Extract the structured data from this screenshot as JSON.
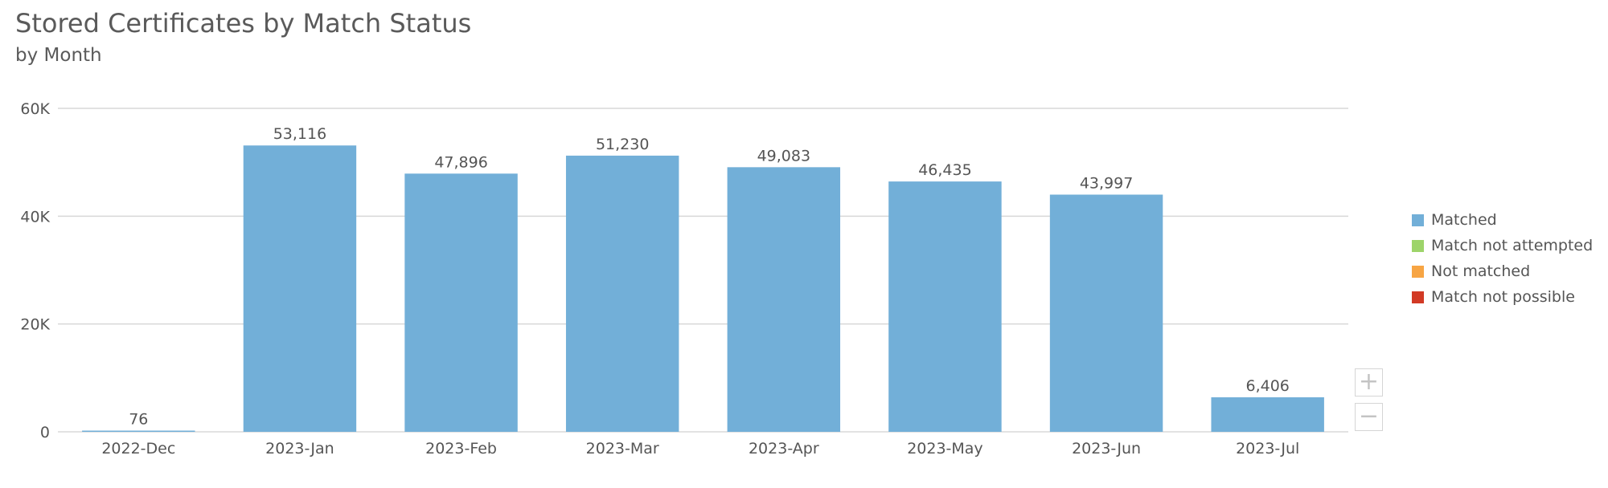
{
  "colors": {
    "matched": "#72afd8",
    "match_not_attempted": "#9dd46a",
    "not_matched": "#f7a544",
    "match_not_possible": "#d23a25",
    "gridline": "#d8d8d8",
    "text": "#555555"
  },
  "controls": {
    "zoom_in_icon": "plus-icon",
    "zoom_in_glyph": "+",
    "zoom_out_icon": "minus-icon",
    "zoom_out_glyph": "−"
  },
  "chart_data": {
    "type": "bar",
    "title": "Stored Certificates by Match Status",
    "subtitle": "by Month",
    "xlabel": "",
    "ylabel": "",
    "categories": [
      "2022-Dec",
      "2023-Jan",
      "2023-Feb",
      "2023-Mar",
      "2023-Apr",
      "2023-May",
      "2023-Jun",
      "2023-Jul"
    ],
    "series": [
      {
        "name": "Matched",
        "values": [
          76,
          53116,
          47896,
          51230,
          49083,
          46435,
          43997,
          6406
        ],
        "data_labels": [
          "76",
          "53,116",
          "47,896",
          "51,230",
          "49,083",
          "46,435",
          "43,997",
          "6,406"
        ]
      },
      {
        "name": "Match not attempted",
        "values": [
          0,
          0,
          0,
          0,
          0,
          0,
          0,
          0
        ]
      },
      {
        "name": "Not matched",
        "values": [
          0,
          0,
          0,
          0,
          0,
          0,
          0,
          0
        ]
      },
      {
        "name": "Match not possible",
        "values": [
          0,
          0,
          0,
          0,
          0,
          0,
          0,
          0
        ]
      }
    ],
    "ylim": [
      0,
      60000
    ],
    "yticks": [
      0,
      20000,
      40000,
      60000
    ],
    "ytick_labels": [
      "0",
      "20K",
      "40K",
      "60K"
    ],
    "grid": true,
    "legend": {
      "position": "right",
      "entries": [
        "Matched",
        "Match not attempted",
        "Not matched",
        "Match not possible"
      ]
    }
  }
}
